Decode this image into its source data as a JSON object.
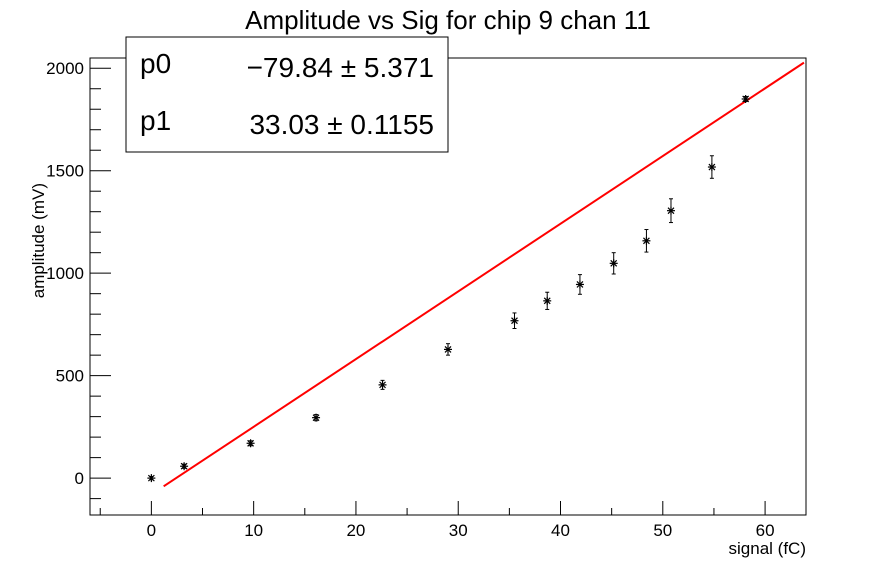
{
  "chart_data": {
    "type": "scatter",
    "title": "Amplitude vs Sig for chip 9 chan 11",
    "xlabel": "signal (fC)",
    "ylabel": "amplitude (mV)",
    "xlim": [
      -6,
      64
    ],
    "ylim": [
      -180,
      2050
    ],
    "xticks": [
      0,
      10,
      20,
      30,
      40,
      50,
      60
    ],
    "yticks": [
      0,
      500,
      1000,
      1500,
      2000
    ],
    "grid": false,
    "series": [
      {
        "marker": "star",
        "color": "#000000",
        "points": [
          {
            "x": 0.0,
            "y": 0,
            "err": 8
          },
          {
            "x": 3.2,
            "y": 58,
            "err": 10
          },
          {
            "x": 9.7,
            "y": 170,
            "err": 12
          },
          {
            "x": 16.1,
            "y": 295,
            "err": 15
          },
          {
            "x": 22.6,
            "y": 455,
            "err": 22
          },
          {
            "x": 29.0,
            "y": 628,
            "err": 28
          },
          {
            "x": 35.5,
            "y": 768,
            "err": 38
          },
          {
            "x": 38.7,
            "y": 865,
            "err": 42
          },
          {
            "x": 41.9,
            "y": 945,
            "err": 48
          },
          {
            "x": 45.2,
            "y": 1048,
            "err": 52
          },
          {
            "x": 48.4,
            "y": 1158,
            "err": 55
          },
          {
            "x": 50.8,
            "y": 1305,
            "err": 58
          },
          {
            "x": 54.8,
            "y": 1518,
            "err": 55
          },
          {
            "x": 58.1,
            "y": 1850,
            "err": 12
          }
        ]
      }
    ],
    "fit": {
      "color": "#ff0000",
      "x_range": [
        1.2,
        63.8
      ],
      "p0": -79.84,
      "p1": 33.03
    },
    "stats": [
      {
        "key": "p0",
        "value": "−79.84 ± 5.371"
      },
      {
        "key": "p1",
        "value": "33.03 ± 0.1155"
      }
    ]
  }
}
